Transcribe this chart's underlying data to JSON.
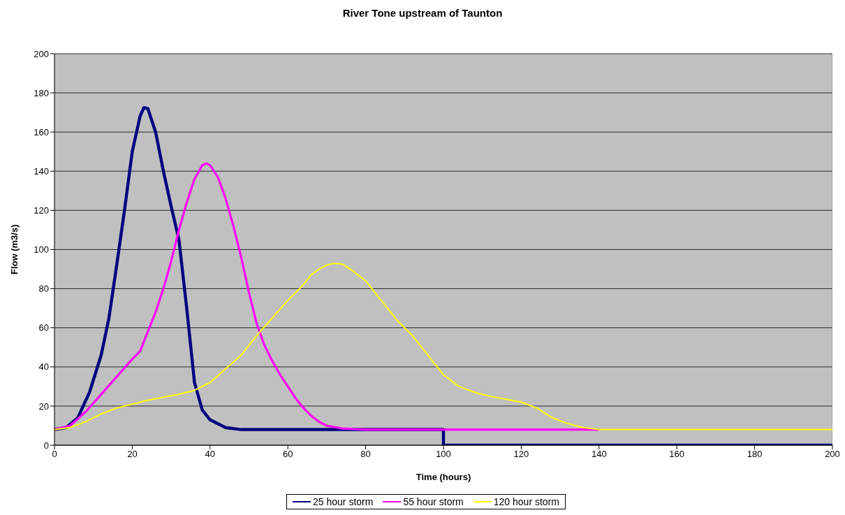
{
  "chart_data": {
    "type": "line",
    "title": "River Tone upstream of Taunton",
    "xlabel": "Time (hours)",
    "ylabel": "Flow (m3/s)",
    "xlim": [
      0,
      200
    ],
    "xticks": [
      0,
      20,
      40,
      60,
      80,
      100,
      120,
      140,
      160,
      180,
      200
    ],
    "ylim": [
      0,
      200
    ],
    "yticks": [
      0,
      20,
      40,
      60,
      80,
      100,
      120,
      140,
      160,
      180,
      200
    ],
    "grid": "y",
    "legend": "bottom",
    "marker": "none",
    "line_style": "solid",
    "series": [
      {
        "name": "25 hour storm",
        "color": "#000080",
        "x": [
          0,
          3,
          6,
          9,
          12,
          14,
          16,
          18,
          20,
          22,
          23,
          24,
          26,
          28,
          30,
          32,
          34,
          36,
          38,
          40,
          44,
          48,
          60,
          80,
          100,
          100,
          200
        ],
        "values": [
          8,
          9,
          14,
          27,
          46,
          65,
          92,
          120,
          150,
          168,
          172.5,
          172,
          160,
          140,
          122,
          105,
          70,
          32,
          18,
          13,
          9,
          8,
          8,
          8,
          8,
          0,
          0
        ]
      },
      {
        "name": "55 hour storm",
        "color": "#ff00ff",
        "x": [
          0,
          4,
          8,
          12,
          16,
          20,
          22,
          24,
          26,
          28,
          30,
          32,
          34,
          36,
          38,
          39,
          40,
          42,
          44,
          46,
          48,
          50,
          52,
          54,
          56,
          58,
          60,
          62,
          64,
          66,
          68,
          70,
          74,
          80,
          140
        ],
        "values": [
          8,
          10,
          17,
          26,
          35,
          44,
          48,
          58,
          68,
          80,
          94,
          110,
          124,
          136,
          143,
          144,
          143,
          137,
          126,
          112,
          96,
          78,
          62,
          51,
          43,
          36,
          30,
          24,
          19,
          15,
          12,
          10,
          8.5,
          8,
          8
        ]
      },
      {
        "name": "120 hour storm",
        "color": "#ffff00",
        "x": [
          0,
          4,
          8,
          12,
          16,
          20,
          24,
          28,
          32,
          36,
          40,
          44,
          48,
          52,
          56,
          60,
          64,
          66,
          68,
          70,
          72,
          74,
          76,
          80,
          84,
          88,
          92,
          96,
          100,
          104,
          108,
          112,
          116,
          120,
          124,
          128,
          132,
          136,
          140,
          200
        ],
        "values": [
          8,
          9,
          12,
          16,
          19,
          21,
          23,
          24.5,
          26,
          28,
          32,
          39,
          46,
          56,
          65,
          74,
          82,
          87,
          90,
          92,
          93,
          92.5,
          90,
          84,
          74,
          64,
          56,
          46,
          36,
          30,
          27,
          25,
          23.5,
          22,
          19,
          14,
          11,
          9,
          8,
          8
        ]
      }
    ]
  }
}
